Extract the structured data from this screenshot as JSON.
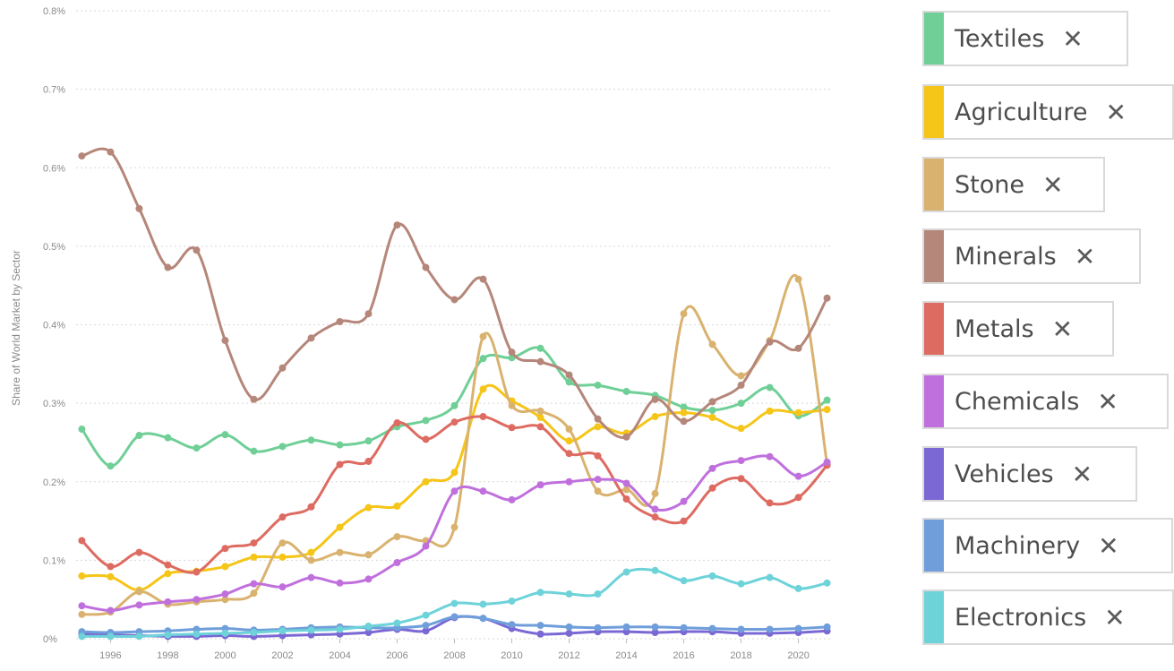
{
  "chart_data": {
    "type": "line",
    "title": "",
    "ylabel": "Share of World Market by Sector",
    "xlabel": "",
    "x": [
      1995,
      1996,
      1997,
      1998,
      1999,
      2000,
      2001,
      2002,
      2003,
      2004,
      2005,
      2006,
      2007,
      2008,
      2009,
      2010,
      2011,
      2012,
      2013,
      2014,
      2015,
      2016,
      2017,
      2018,
      2019,
      2020,
      2021
    ],
    "xlim": [
      1994.8,
      2021.2
    ],
    "xticks": [
      1996,
      1998,
      2000,
      2002,
      2004,
      2006,
      2008,
      2010,
      2012,
      2014,
      2016,
      2018,
      2020
    ],
    "ylim": [
      0,
      0.8
    ],
    "yticks": [
      0,
      0.1,
      0.2,
      0.3,
      0.4,
      0.5,
      0.6,
      0.7,
      0.8
    ],
    "ytick_labels": [
      "0%",
      "0.1%",
      "0.2%",
      "0.3%",
      "0.4%",
      "0.5%",
      "0.6%",
      "0.7%",
      "0.8%"
    ],
    "grid": true,
    "legend_position": "right",
    "series": [
      {
        "name": "Textiles",
        "color": "#6fcf97",
        "values": [
          0.267,
          0.22,
          0.259,
          0.256,
          0.243,
          0.26,
          0.239,
          0.245,
          0.253,
          0.247,
          0.252,
          0.27,
          0.278,
          0.297,
          0.357,
          0.358,
          0.37,
          0.327,
          0.323,
          0.315,
          0.31,
          0.295,
          0.291,
          0.3,
          0.32,
          0.284,
          0.304
        ]
      },
      {
        "name": "Agriculture",
        "color": "#f5c518",
        "values": [
          0.08,
          0.079,
          0.062,
          0.083,
          0.086,
          0.092,
          0.104,
          0.104,
          0.11,
          0.142,
          0.167,
          0.169,
          0.2,
          0.212,
          0.318,
          0.303,
          0.282,
          0.252,
          0.27,
          0.262,
          0.283,
          0.288,
          0.282,
          0.268,
          0.29,
          0.288,
          0.292
        ]
      },
      {
        "name": "Stone",
        "color": "#d9b26f",
        "values": [
          0.031,
          0.034,
          0.06,
          0.044,
          0.047,
          0.05,
          0.058,
          0.122,
          0.1,
          0.11,
          0.107,
          0.13,
          0.125,
          0.142,
          0.385,
          0.297,
          0.29,
          0.267,
          0.188,
          0.19,
          0.185,
          0.414,
          0.375,
          0.335,
          0.38,
          0.458,
          0.222
        ]
      },
      {
        "name": "Minerals",
        "color": "#b5867a",
        "values": [
          0.615,
          0.62,
          0.548,
          0.473,
          0.495,
          0.38,
          0.305,
          0.345,
          0.383,
          0.404,
          0.414,
          0.527,
          0.473,
          0.432,
          0.458,
          0.365,
          0.353,
          0.336,
          0.28,
          0.257,
          0.305,
          0.277,
          0.302,
          0.323,
          0.378,
          0.37,
          0.434
        ]
      },
      {
        "name": "Metals",
        "color": "#de6b62",
        "values": [
          0.125,
          0.092,
          0.11,
          0.094,
          0.085,
          0.115,
          0.122,
          0.155,
          0.168,
          0.222,
          0.226,
          0.275,
          0.254,
          0.276,
          0.283,
          0.269,
          0.27,
          0.236,
          0.233,
          0.178,
          0.155,
          0.15,
          0.192,
          0.204,
          0.173,
          0.18,
          0.221
        ]
      },
      {
        "name": "Chemicals",
        "color": "#c070dd",
        "values": [
          0.042,
          0.036,
          0.043,
          0.047,
          0.05,
          0.057,
          0.07,
          0.066,
          0.078,
          0.071,
          0.076,
          0.097,
          0.118,
          0.188,
          0.188,
          0.177,
          0.196,
          0.2,
          0.203,
          0.198,
          0.165,
          0.175,
          0.217,
          0.227,
          0.232,
          0.207,
          0.225
        ]
      },
      {
        "name": "Vehicles",
        "color": "#7b68d4",
        "values": [
          0.006,
          0.005,
          0.004,
          0.003,
          0.003,
          0.004,
          0.003,
          0.004,
          0.005,
          0.006,
          0.008,
          0.012,
          0.01,
          0.027,
          0.026,
          0.013,
          0.006,
          0.007,
          0.009,
          0.009,
          0.008,
          0.009,
          0.009,
          0.007,
          0.007,
          0.008,
          0.01
        ]
      },
      {
        "name": "Machinery",
        "color": "#6f9edb",
        "values": [
          0.009,
          0.008,
          0.009,
          0.01,
          0.012,
          0.013,
          0.011,
          0.012,
          0.014,
          0.015,
          0.014,
          0.014,
          0.017,
          0.028,
          0.026,
          0.018,
          0.017,
          0.015,
          0.014,
          0.015,
          0.015,
          0.014,
          0.013,
          0.012,
          0.012,
          0.013,
          0.015
        ]
      },
      {
        "name": "Electronics",
        "color": "#6ed3d9",
        "values": [
          0.003,
          0.003,
          0.003,
          0.005,
          0.006,
          0.007,
          0.008,
          0.01,
          0.011,
          0.012,
          0.016,
          0.02,
          0.03,
          0.045,
          0.044,
          0.048,
          0.059,
          0.057,
          0.057,
          0.085,
          0.087,
          0.074,
          0.08,
          0.07,
          0.078,
          0.064,
          0.071
        ]
      }
    ]
  },
  "legend": {
    "items": [
      {
        "label": "Textiles",
        "close": "✕"
      },
      {
        "label": "Agriculture",
        "close": "✕"
      },
      {
        "label": "Stone",
        "close": "✕"
      },
      {
        "label": "Minerals",
        "close": "✕"
      },
      {
        "label": "Metals",
        "close": "✕"
      },
      {
        "label": "Chemicals",
        "close": "✕"
      },
      {
        "label": "Vehicles",
        "close": "✕"
      },
      {
        "label": "Machinery",
        "close": "✕"
      },
      {
        "label": "Electronics",
        "close": "✕"
      }
    ]
  }
}
